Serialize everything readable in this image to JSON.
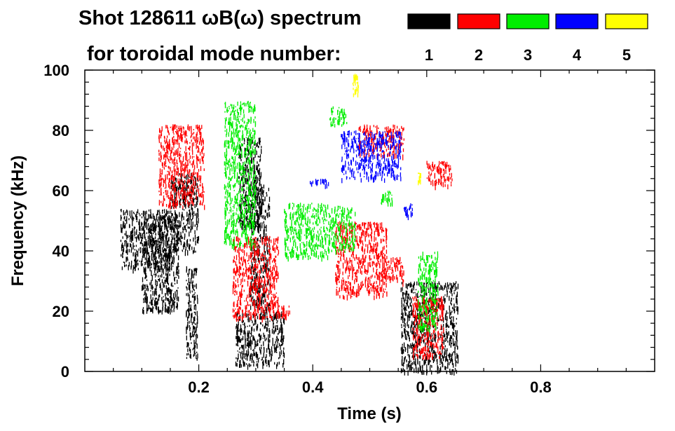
{
  "chart_data": {
    "type": "scatter",
    "title": "Shot 128611 ωB(ω) spectrum",
    "subtitle": "for toroidal mode number:",
    "xlabel": "Time (s)",
    "ylabel": "Frequency (kHz)",
    "xlim": [
      0.0,
      1.0
    ],
    "ylim": [
      0,
      100
    ],
    "x_ticks": [
      0.2,
      0.4,
      0.6,
      0.8
    ],
    "x_tick_labels": [
      "0.2",
      "0.4",
      "0.6",
      "0.8"
    ],
    "y_ticks": [
      0,
      20,
      40,
      60,
      80,
      100
    ],
    "y_tick_labels": [
      "0",
      "20",
      "40",
      "60",
      "80",
      "100"
    ],
    "legend_position": "top-right",
    "grid": false,
    "series": [
      {
        "name": "1",
        "color": "#000000",
        "clusters": [
          {
            "t": [
              0.063,
              0.15
            ],
            "f": [
              34,
              54
            ]
          },
          {
            "t": [
              0.1,
              0.165
            ],
            "f": [
              20,
              52
            ]
          },
          {
            "t": [
              0.15,
              0.2
            ],
            "f": [
              40,
              66
            ]
          },
          {
            "t": [
              0.178,
              0.198
            ],
            "f": [
              4,
              35
            ]
          },
          {
            "t": [
              0.265,
              0.35
            ],
            "f": [
              2,
              20
            ]
          },
          {
            "t": [
              0.27,
              0.31
            ],
            "f": [
              48,
              78
            ]
          },
          {
            "t": [
              0.29,
              0.325
            ],
            "f": [
              20,
              62
            ]
          },
          {
            "t": [
              0.555,
              0.655
            ],
            "f": [
              0,
              30
            ]
          }
        ]
      },
      {
        "name": "2",
        "color": "#ff0000",
        "clusters": [
          {
            "t": [
              0.13,
              0.21
            ],
            "f": [
              55,
              82
            ]
          },
          {
            "t": [
              0.26,
              0.34
            ],
            "f": [
              18,
              45
            ]
          },
          {
            "t": [
              0.34,
              0.36
            ],
            "f": [
              18,
              22
            ]
          },
          {
            "t": [
              0.44,
              0.53
            ],
            "f": [
              25,
              50
            ]
          },
          {
            "t": [
              0.52,
              0.56
            ],
            "f": [
              30,
              38
            ]
          },
          {
            "t": [
              0.48,
              0.56
            ],
            "f": [
              72,
              82
            ]
          },
          {
            "t": [
              0.575,
              0.63
            ],
            "f": [
              5,
              25
            ]
          },
          {
            "t": [
              0.6,
              0.645
            ],
            "f": [
              62,
              70
            ]
          }
        ]
      },
      {
        "name": "3",
        "color": "#00ee00",
        "clusters": [
          {
            "t": [
              0.245,
              0.3
            ],
            "f": [
              42,
              90
            ]
          },
          {
            "t": [
              0.35,
              0.43
            ],
            "f": [
              38,
              56
            ]
          },
          {
            "t": [
              0.43,
              0.46
            ],
            "f": [
              82,
              88
            ]
          },
          {
            "t": [
              0.43,
              0.475
            ],
            "f": [
              40,
              55
            ]
          },
          {
            "t": [
              0.52,
              0.54
            ],
            "f": [
              56,
              60
            ]
          },
          {
            "t": [
              0.585,
              0.62
            ],
            "f": [
              14,
              40
            ]
          }
        ]
      },
      {
        "name": "4",
        "color": "#0000ff",
        "clusters": [
          {
            "t": [
              0.395,
              0.43
            ],
            "f": [
              62,
              64
            ]
          },
          {
            "t": [
              0.45,
              0.555
            ],
            "f": [
              64,
              80
            ]
          },
          {
            "t": [
              0.56,
              0.575
            ],
            "f": [
              52,
              56
            ]
          }
        ]
      },
      {
        "name": "5",
        "color": "#ffff00",
        "clusters": [
          {
            "t": [
              0.47,
              0.48
            ],
            "f": [
              92,
              99
            ]
          },
          {
            "t": [
              0.585,
              0.59
            ],
            "f": [
              63,
              66
            ]
          }
        ]
      }
    ]
  }
}
